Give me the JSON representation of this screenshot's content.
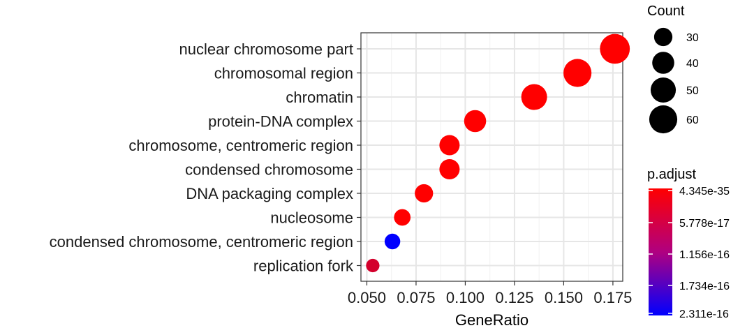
{
  "chart_data": {
    "type": "scatter",
    "xlabel": "GeneRatio",
    "ylabel": "",
    "categories": [
      "nuclear chromosome part",
      "chromosomal region",
      "chromatin",
      "protein-DNA complex",
      "chromosome, centromeric region",
      "condensed chromosome",
      "DNA packaging complex",
      "nucleosome",
      "condensed chromosome, centromeric region",
      "replication fork"
    ],
    "points": [
      {
        "category": "nuclear chromosome part",
        "gene_ratio": 0.176,
        "count": 67,
        "p_adjust": 4.345e-35
      },
      {
        "category": "chromosomal region",
        "gene_ratio": 0.157,
        "count": 60,
        "p_adjust": 4.345e-35
      },
      {
        "category": "chromatin",
        "gene_ratio": 0.135,
        "count": 52,
        "p_adjust": 1e-33
      },
      {
        "category": "protein-DNA complex",
        "gene_ratio": 0.105,
        "count": 40,
        "p_adjust": 1e-30
      },
      {
        "category": "chromosome, centromeric region",
        "gene_ratio": 0.092,
        "count": 35,
        "p_adjust": 1e-28
      },
      {
        "category": "condensed chromosome",
        "gene_ratio": 0.092,
        "count": 35,
        "p_adjust": 1e-27
      },
      {
        "category": "DNA packaging complex",
        "gene_ratio": 0.079,
        "count": 30,
        "p_adjust": 1e-25
      },
      {
        "category": "nucleosome",
        "gene_ratio": 0.068,
        "count": 26,
        "p_adjust": 1e-22
      },
      {
        "category": "condensed chromosome, centromeric region",
        "gene_ratio": 0.063,
        "count": 24,
        "p_adjust": 2.3e-16
      },
      {
        "category": "replication fork",
        "gene_ratio": 0.053,
        "count": 20,
        "p_adjust": 4e-17
      }
    ],
    "xlim": [
      0.047,
      0.18
    ],
    "x_ticks": [
      "0.050",
      "0.075",
      "0.100",
      "0.125",
      "0.150",
      "0.175"
    ],
    "grid": true,
    "size_legend": {
      "title": "Count",
      "entries": [
        {
          "label": "30",
          "value": 30
        },
        {
          "label": "40",
          "value": 40
        },
        {
          "label": "50",
          "value": 50
        },
        {
          "label": "60",
          "value": 60
        }
      ]
    },
    "color_legend": {
      "title": "p.adjust",
      "labels": [
        "4.345e-35",
        "5.778e-17",
        "1.156e-16",
        "1.734e-16",
        "2.311e-16"
      ],
      "low_color": "#ff0000",
      "high_color": "#0000ff",
      "range": [
        4.345e-35,
        2.311e-16
      ]
    },
    "legend_position": "right"
  }
}
